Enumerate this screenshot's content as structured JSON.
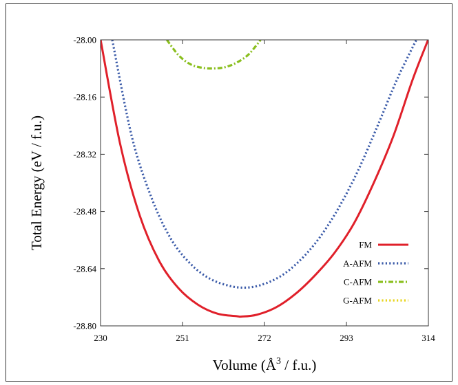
{
  "chart_data": {
    "type": "line",
    "xlabel_main": "Volume (Å",
    "xlabel_sup": "3",
    "xlabel_tail": " / f.u.)",
    "ylabel": "Total Energy (eV / f.u.)",
    "xlim": [
      230,
      314
    ],
    "ylim": [
      -28.8,
      -28.0
    ],
    "x_ticks": [
      "230",
      "251",
      "272",
      "293",
      "314"
    ],
    "y_ticks": [
      "-28.00",
      "-28.16",
      "-28.32",
      "-28.48",
      "-28.64",
      "-28.80"
    ],
    "grid": false,
    "legend_position": "bottom-right",
    "series": [
      {
        "name": "FM",
        "color": "#e0202a",
        "style": "solid",
        "x": [
          230,
          235,
          240,
          245,
          250,
          255,
          260,
          265,
          266,
          270,
          275,
          280,
          285,
          290,
          295,
          300,
          305,
          310,
          314
        ],
        "y": [
          -27.999,
          -28.29,
          -28.49,
          -28.618,
          -28.695,
          -28.741,
          -28.766,
          -28.773,
          -28.774,
          -28.769,
          -28.748,
          -28.71,
          -28.658,
          -28.595,
          -28.512,
          -28.4,
          -28.27,
          -28.11,
          -27.998
        ]
      },
      {
        "name": "A-AFM",
        "color": "#3a5aa8",
        "style": "dotted",
        "x": [
          233,
          238,
          243,
          248,
          253,
          258,
          263,
          267,
          271,
          276,
          281,
          286,
          291,
          296,
          301,
          306,
          311
        ],
        "y": [
          -28.0,
          -28.27,
          -28.44,
          -28.556,
          -28.626,
          -28.668,
          -28.688,
          -28.693,
          -28.686,
          -28.662,
          -28.618,
          -28.555,
          -28.47,
          -28.365,
          -28.24,
          -28.11,
          -27.998
        ]
      },
      {
        "name": "C-AFM",
        "color": "#8abf1e",
        "style": "dashdot",
        "x": [
          247,
          250,
          253,
          256,
          259,
          262,
          265,
          268,
          271
        ],
        "y": [
          -28.0,
          -28.043,
          -28.068,
          -28.078,
          -28.08,
          -28.076,
          -28.063,
          -28.04,
          -28.0
        ]
      },
      {
        "name": "G-AFM",
        "color": "#e8d51e",
        "style": "dotted",
        "x": [],
        "y": []
      }
    ]
  }
}
